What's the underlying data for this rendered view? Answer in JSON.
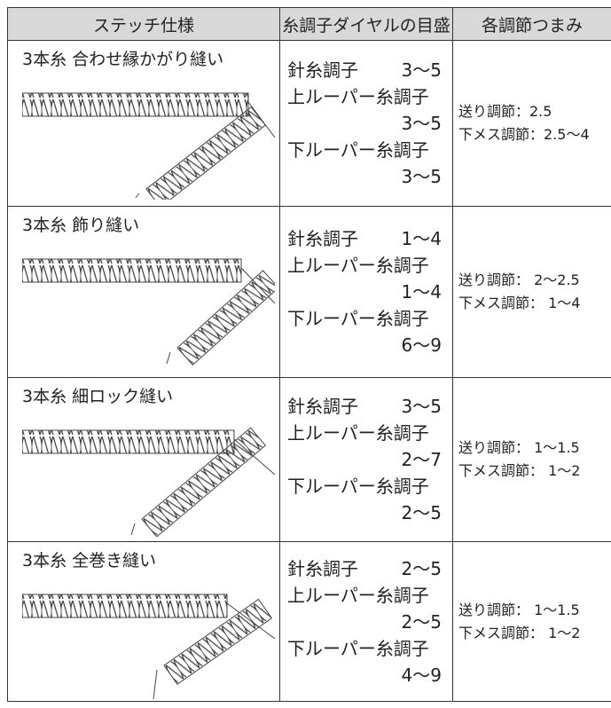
{
  "header": [
    "ステッチ仕様",
    "糸調子ダイヤルの目盛",
    "各調節つまみ"
  ],
  "rows": [
    {
      "stitch": "3本糸 合わせ縁かがり縫い",
      "needle": [
        "針糸調子",
        "3～5"
      ],
      "upper": [
        "上ルーパー糸調子",
        "3～5"
      ],
      "lower": [
        "下ルーパー糸調子",
        "3～5"
      ],
      "adjust": [
        "送り調節：2.5",
        "下メス調節：2.5～4"
      ]
    },
    {
      "stitch": "3本糸 飾り縫い",
      "needle": [
        "針糸調子",
        "1～4"
      ],
      "upper": [
        "上ルーパー糸調子",
        "1～4"
      ],
      "lower": [
        "下ルーパー糸調子",
        "6～9"
      ],
      "adjust": [
        "送り調節： 2～2.5",
        "下メス調節： 1～4"
      ]
    },
    {
      "stitch": "3本糸 細ロック縫い",
      "needle": [
        "針糸調子",
        "3～5"
      ],
      "upper": [
        "上ルーパー糸調子",
        "2～7"
      ],
      "lower": [
        "下ルーパー糸調子",
        "2～5"
      ],
      "adjust": [
        "送り調節： 1～1.5",
        "下メス調節： 1～2"
      ]
    },
    {
      "stitch": "3本糸 全巻き縫い",
      "needle": [
        "針糸調子",
        "2～5"
      ],
      "upper": [
        "上ルーパー糸調子",
        "2～5"
      ],
      "lower": [
        "下ルーパー糸調子",
        "4～9"
      ],
      "adjust": [
        "送り調節： 1～1.5",
        "下メス調節： 1～2"
      ]
    }
  ]
}
